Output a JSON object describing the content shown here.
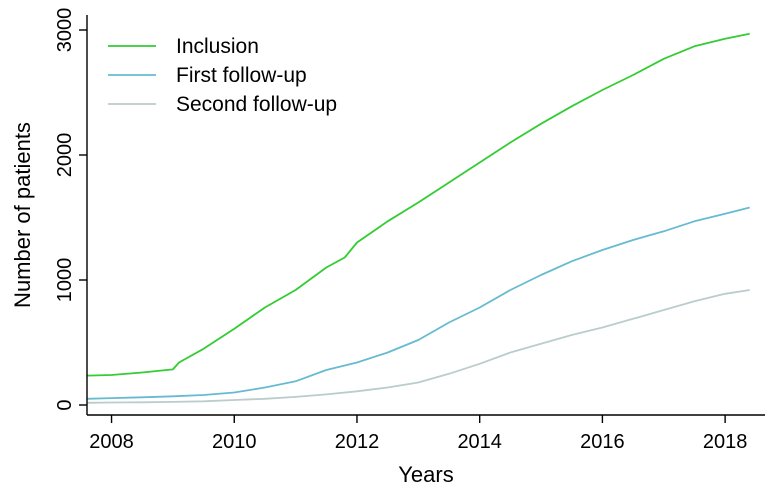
{
  "chart_data": {
    "type": "line",
    "xlabel": "Years",
    "ylabel": "Number of patients",
    "xlim": [
      2007.6,
      2018.65
    ],
    "ylim": [
      -80,
      3120
    ],
    "x_ticks": [
      2008,
      2010,
      2012,
      2014,
      2016,
      2018
    ],
    "y_ticks": [
      0,
      1000,
      2000,
      3000
    ],
    "grid": false,
    "legend_position": "top-left",
    "series": [
      {
        "name": "Inclusion",
        "color": "#33cc33",
        "x": [
          2007.6,
          2008.0,
          2008.5,
          2009.0,
          2009.1,
          2009.5,
          2010.0,
          2010.5,
          2011.0,
          2011.5,
          2011.8,
          2012.0,
          2012.5,
          2013.0,
          2013.5,
          2014.0,
          2014.5,
          2015.0,
          2015.5,
          2016.0,
          2016.5,
          2017.0,
          2017.5,
          2018.0,
          2018.4
        ],
        "y": [
          235,
          240,
          260,
          285,
          340,
          450,
          610,
          780,
          920,
          1100,
          1180,
          1300,
          1470,
          1620,
          1780,
          1940,
          2100,
          2250,
          2390,
          2520,
          2640,
          2770,
          2870,
          2930,
          2970
        ]
      },
      {
        "name": "First follow-up",
        "color": "#66bbd0",
        "x": [
          2007.6,
          2008.0,
          2008.5,
          2009.0,
          2009.5,
          2010.0,
          2010.5,
          2011.0,
          2011.5,
          2012.0,
          2012.5,
          2013.0,
          2013.5,
          2014.0,
          2014.5,
          2015.0,
          2015.5,
          2016.0,
          2016.5,
          2017.0,
          2017.5,
          2018.0,
          2018.4
        ],
        "y": [
          50,
          55,
          62,
          70,
          80,
          100,
          140,
          190,
          280,
          340,
          420,
          520,
          660,
          780,
          920,
          1040,
          1150,
          1240,
          1320,
          1390,
          1470,
          1530,
          1580
        ]
      },
      {
        "name": "Second follow-up",
        "color": "#bbcccc",
        "x": [
          2007.6,
          2008.0,
          2008.5,
          2009.0,
          2009.5,
          2010.0,
          2010.5,
          2011.0,
          2011.5,
          2012.0,
          2012.5,
          2013.0,
          2013.5,
          2014.0,
          2014.5,
          2015.0,
          2015.5,
          2016.0,
          2016.5,
          2017.0,
          2017.5,
          2018.0,
          2018.4
        ],
        "y": [
          18,
          20,
          22,
          25,
          30,
          40,
          50,
          65,
          85,
          110,
          140,
          180,
          250,
          330,
          420,
          490,
          560,
          620,
          690,
          760,
          830,
          890,
          920
        ]
      }
    ]
  }
}
